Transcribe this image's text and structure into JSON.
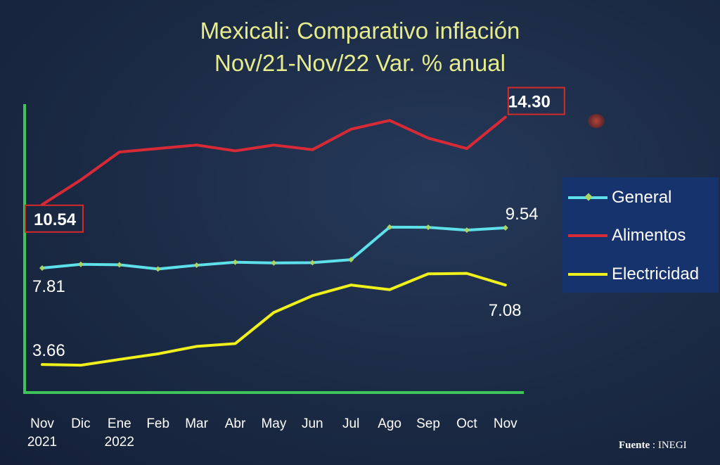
{
  "title_line1": "Mexicali: Comparativo inflación",
  "title_line2": "Nov/21-Nov/22  Var. % anual",
  "source_label": "Fuente",
  "source_value": ": INEGI",
  "colors": {
    "General": "#5ee0ea",
    "Alimentos": "#d82a36",
    "Electricidad": "#f0f01a",
    "axis": "#3ec45a",
    "highlight_box": "#d62a2a"
  },
  "chart_data": {
    "type": "line",
    "title": "Mexicali: Comparativo inflación Nov/21-Nov/22  Var. % anual",
    "categories": [
      "Nov 2021",
      "Dic",
      "Ene 2022",
      "Feb",
      "Mar",
      "Abr",
      "May",
      "Jun",
      "Jul",
      "Ago",
      "Sep",
      "Oct",
      "Nov"
    ],
    "tick_labels": [
      [
        "Nov",
        "2021"
      ],
      [
        "Dic",
        ""
      ],
      [
        "Ene",
        "2022"
      ],
      [
        "Feb",
        ""
      ],
      [
        "Mar",
        ""
      ],
      [
        "Abr",
        ""
      ],
      [
        "May",
        ""
      ],
      [
        "Jun",
        ""
      ],
      [
        "Jul",
        ""
      ],
      [
        "Ago",
        ""
      ],
      [
        "Sep",
        ""
      ],
      [
        "Oct",
        ""
      ],
      [
        "Nov",
        ""
      ]
    ],
    "series": [
      {
        "name": "General",
        "values": [
          7.81,
          7.97,
          7.95,
          7.77,
          7.93,
          8.06,
          8.03,
          8.04,
          8.17,
          9.57,
          9.56,
          9.44,
          9.54
        ]
      },
      {
        "name": "Alimentos",
        "values": [
          10.54,
          11.6,
          12.8,
          12.95,
          13.1,
          12.85,
          13.1,
          12.9,
          13.78,
          14.16,
          13.4,
          12.95,
          14.3
        ]
      },
      {
        "name": "Electricidad",
        "values": [
          3.66,
          3.63,
          3.88,
          4.12,
          4.44,
          4.56,
          5.9,
          6.62,
          7.08,
          6.88,
          7.56,
          7.58,
          7.08
        ]
      }
    ],
    "data_labels": [
      {
        "series": "General",
        "index": 0,
        "text": "7.81"
      },
      {
        "series": "General",
        "index": 12,
        "text": "9.54"
      },
      {
        "series": "Alimentos",
        "index": 0,
        "text": "10.54",
        "boxed": true
      },
      {
        "series": "Alimentos",
        "index": 12,
        "text": "14.30",
        "boxed": true
      },
      {
        "series": "Electricidad",
        "index": 0,
        "text": "3.66"
      },
      {
        "series": "Electricidad",
        "index": 12,
        "text": "7.08"
      }
    ],
    "ylim": [
      3.0,
      14.8
    ],
    "grid": false,
    "legend_position": "right",
    "markers": {
      "General": "diamond"
    }
  }
}
